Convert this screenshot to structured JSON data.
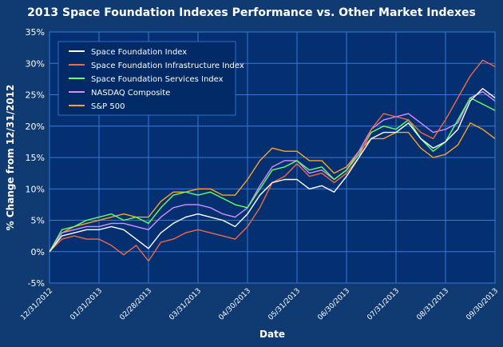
{
  "chart_data": {
    "type": "line",
    "title": "2013 Space Foundation Indexes Performance vs. Other Market Indexes",
    "xlabel": "Date",
    "ylabel": "% Change from 12/31/2012",
    "ylim": [
      -5,
      35
    ],
    "yticks": [
      "-5%",
      "0%",
      "5%",
      "10%",
      "15%",
      "20%",
      "25%",
      "30%",
      "35%"
    ],
    "xticks": [
      "12/31/2012",
      "01/31/2013",
      "02/28/2013",
      "03/31/2013",
      "04/30/2013",
      "05/31/2013",
      "06/30/2013",
      "07/31/2013",
      "08/31/2013",
      "09/30/2013"
    ],
    "grid": true,
    "legend_position": "top-left",
    "x": [
      "12/31/2012",
      "01/07/2013",
      "01/15/2013",
      "01/22/2013",
      "01/31/2013",
      "02/07/2013",
      "02/15/2013",
      "02/22/2013",
      "02/28/2013",
      "03/07/2013",
      "03/15/2013",
      "03/22/2013",
      "03/31/2013",
      "04/07/2013",
      "04/15/2013",
      "04/22/2013",
      "04/30/2013",
      "05/07/2013",
      "05/15/2013",
      "05/22/2013",
      "05/31/2013",
      "06/07/2013",
      "06/15/2013",
      "06/22/2013",
      "06/30/2013",
      "07/07/2013",
      "07/15/2013",
      "07/22/2013",
      "07/31/2013",
      "08/07/2013",
      "08/15/2013",
      "08/22/2013",
      "08/31/2013",
      "09/07/2013",
      "09/15/2013",
      "09/22/2013",
      "09/30/2013"
    ],
    "series": [
      {
        "name": "Space Foundation Index",
        "color": "#ffffff",
        "values": [
          0,
          2.5,
          3.0,
          3.5,
          3.5,
          4.0,
          3.5,
          2.0,
          0.5,
          3.0,
          4.5,
          5.5,
          6.0,
          5.5,
          5.0,
          4.0,
          6.0,
          9.0,
          11.0,
          11.5,
          11.5,
          10.0,
          10.5,
          9.5,
          12.0,
          15.0,
          18.0,
          19.0,
          19.0,
          20.5,
          18.0,
          16.5,
          17.5,
          19.5,
          24.0,
          26.0,
          24.5
        ]
      },
      {
        "name": "Space Foundation Infrastructure Index",
        "color": "#f06a43",
        "values": [
          0,
          2.0,
          2.5,
          2.0,
          2.0,
          1.0,
          -0.5,
          1.0,
          -1.5,
          1.5,
          2.0,
          3.0,
          3.5,
          3.0,
          2.5,
          2.0,
          4.0,
          7.0,
          11.0,
          12.0,
          14.0,
          12.0,
          12.5,
          11.0,
          12.5,
          15.0,
          19.5,
          22.0,
          21.5,
          21.0,
          19.0,
          18.0,
          21.0,
          24.5,
          28.0,
          30.5,
          29.5
        ]
      },
      {
        "name": "Space Foundation Services Index",
        "color": "#66ff66",
        "values": [
          0,
          3.5,
          4.0,
          5.0,
          5.5,
          6.0,
          5.0,
          5.5,
          4.5,
          7.0,
          9.0,
          9.5,
          9.0,
          9.5,
          8.5,
          7.5,
          7.0,
          10.0,
          13.0,
          13.5,
          14.5,
          13.0,
          13.5,
          11.5,
          13.0,
          15.5,
          19.0,
          20.0,
          19.5,
          21.0,
          18.0,
          16.0,
          17.5,
          21.0,
          24.5,
          23.5,
          22.5
        ]
      },
      {
        "name": "NASDAQ Composite",
        "color": "#d68cff",
        "values": [
          0,
          3.0,
          3.5,
          4.0,
          4.0,
          4.5,
          4.5,
          4.0,
          3.5,
          5.5,
          7.0,
          7.5,
          7.5,
          7.0,
          6.0,
          5.5,
          7.0,
          10.5,
          13.5,
          14.5,
          14.5,
          12.5,
          13.0,
          11.5,
          13.0,
          16.0,
          19.5,
          21.0,
          21.5,
          22.0,
          20.5,
          19.0,
          19.5,
          20.5,
          24.5,
          25.5,
          24.0
        ]
      },
      {
        "name": "S&P 500",
        "color": "#ffa324",
        "values": [
          0,
          3.0,
          4.0,
          4.5,
          5.0,
          5.5,
          6.0,
          5.5,
          5.5,
          8.0,
          9.5,
          9.5,
          10.0,
          10.0,
          9.0,
          9.0,
          11.5,
          14.5,
          16.5,
          16.0,
          16.0,
          14.5,
          14.5,
          12.5,
          13.5,
          16.0,
          18.0,
          18.0,
          19.0,
          19.0,
          16.5,
          15.0,
          15.5,
          17.0,
          20.5,
          19.5,
          18.0
        ]
      }
    ]
  }
}
